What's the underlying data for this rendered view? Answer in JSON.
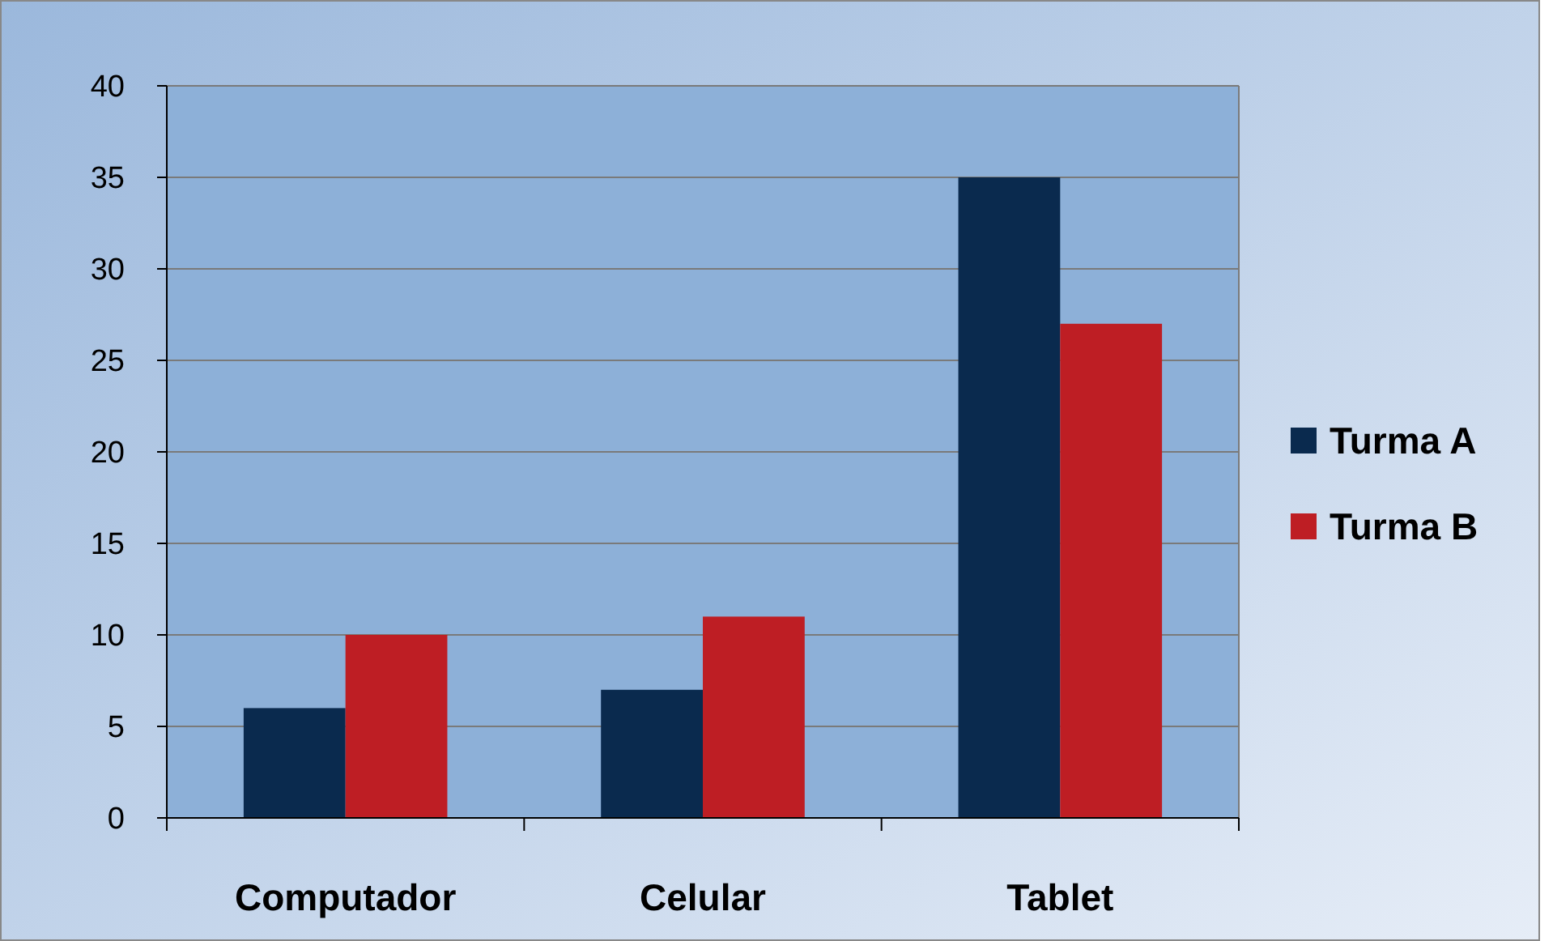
{
  "chart_data": {
    "type": "bar",
    "categories": [
      "Computador",
      "Celular",
      "Tablet"
    ],
    "series": [
      {
        "name": "Turma A",
        "color": "#0a2a4e",
        "values": [
          6,
          7,
          35
        ]
      },
      {
        "name": "Turma B",
        "color": "#be1e24",
        "values": [
          10,
          11,
          27
        ]
      }
    ],
    "ylim": [
      0,
      40
    ],
    "yticks": [
      0,
      5,
      10,
      15,
      20,
      25,
      30,
      35,
      40
    ],
    "grid": "y",
    "legend": "right"
  }
}
